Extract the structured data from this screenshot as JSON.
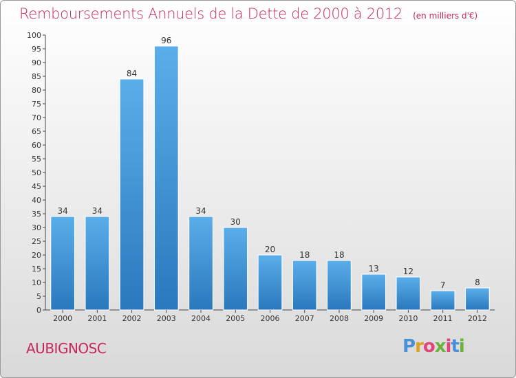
{
  "header": {
    "title": "Remboursements Annuels de la Dette de 2000 à 2012",
    "subtitle": "(en milliers d'€)"
  },
  "town": "AUBIGNOSC",
  "logo": "Proxiti",
  "colors": {
    "bar": "#3d95d8",
    "title": "#c8275e"
  },
  "chart_data": {
    "type": "bar",
    "title": "Remboursements Annuels de la Dette de 2000 à 2012",
    "subtitle": "(en milliers d'€)",
    "categories": [
      "2000",
      "2001",
      "2002",
      "2003",
      "2004",
      "2005",
      "2006",
      "2007",
      "2008",
      "2009",
      "2010",
      "2011",
      "2012"
    ],
    "values": [
      34,
      34,
      84,
      96,
      34,
      30,
      20,
      18,
      18,
      13,
      12,
      7,
      8
    ],
    "ylim": [
      0,
      100
    ],
    "yticks": [
      0,
      5,
      10,
      15,
      20,
      25,
      30,
      35,
      40,
      45,
      50,
      55,
      60,
      65,
      70,
      75,
      80,
      85,
      90,
      95,
      100
    ],
    "xlabel": "",
    "ylabel": "",
    "grid": false
  }
}
